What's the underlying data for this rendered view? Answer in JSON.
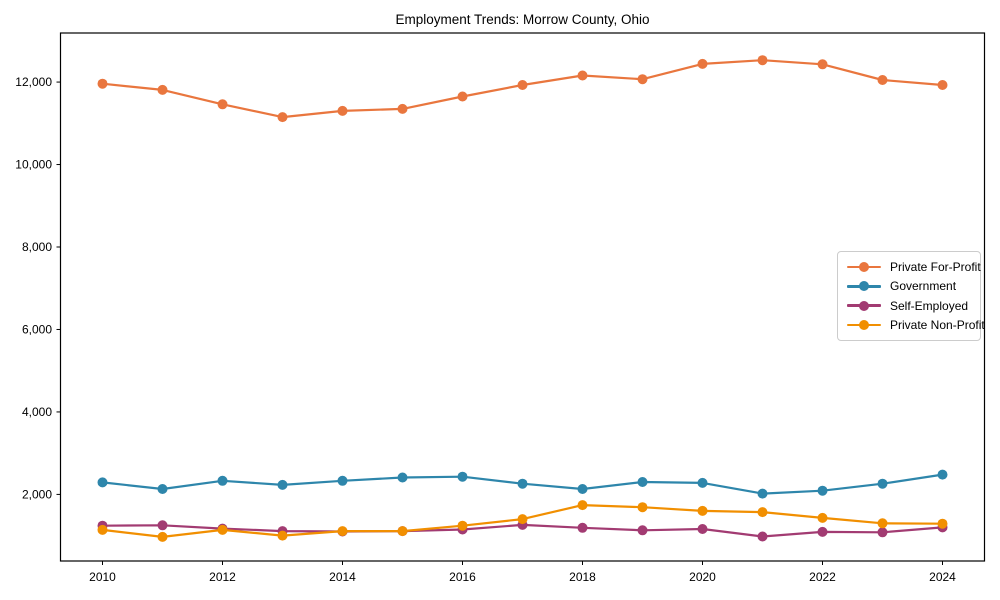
{
  "figure": {
    "background": "#ffffff",
    "frame_color": "#000000",
    "tick_color": "#000000",
    "label_color": "#000000",
    "legend_border_color": "#cccccc"
  },
  "chart_data": {
    "type": "line",
    "title": "Employment Trends: Morrow County, Ohio",
    "xlabel": "",
    "ylabel": "",
    "grid": false,
    "legend_position": "center right",
    "marker": "circle",
    "x": [
      2010,
      2011,
      2012,
      2013,
      2014,
      2015,
      2016,
      2017,
      2018,
      2019,
      2020,
      2021,
      2022,
      2023,
      2024
    ],
    "series": [
      {
        "name": "Private For-Profit",
        "color": "#E9763E",
        "values": [
          11960,
          11810,
          11460,
          11150,
          11300,
          11350,
          11650,
          11930,
          12160,
          12070,
          12440,
          12530,
          12430,
          12050,
          11930
        ]
      },
      {
        "name": "Government",
        "color": "#2E86AB",
        "values": [
          2290,
          2130,
          2330,
          2230,
          2330,
          2410,
          2430,
          2260,
          2130,
          2300,
          2280,
          2020,
          2090,
          2260,
          2480
        ]
      },
      {
        "name": "Self-Employed",
        "color": "#A23B72",
        "values": [
          1240,
          1250,
          1170,
          1110,
          1100,
          1110,
          1150,
          1260,
          1190,
          1130,
          1160,
          980,
          1090,
          1080,
          1200
        ]
      },
      {
        "name": "Private Non-Profit",
        "color": "#F18F01",
        "values": [
          1140,
          970,
          1140,
          1000,
          1110,
          1110,
          1240,
          1400,
          1740,
          1690,
          1600,
          1570,
          1430,
          1300,
          1290
        ]
      }
    ],
    "xlim": [
      2009.3,
      2024.7
    ],
    "ylim": [
      385,
      13190
    ],
    "xticks": {
      "values": [
        2010,
        2012,
        2014,
        2016,
        2018,
        2020,
        2022,
        2024
      ],
      "labels": [
        "2010",
        "2012",
        "2014",
        "2016",
        "2018",
        "2020",
        "2022",
        "2024"
      ]
    },
    "yticks": {
      "values": [
        2000,
        4000,
        6000,
        8000,
        10000,
        12000
      ],
      "labels": [
        "2,000",
        "4,000",
        "6,000",
        "8,000",
        "10,000",
        "12,000"
      ]
    }
  }
}
